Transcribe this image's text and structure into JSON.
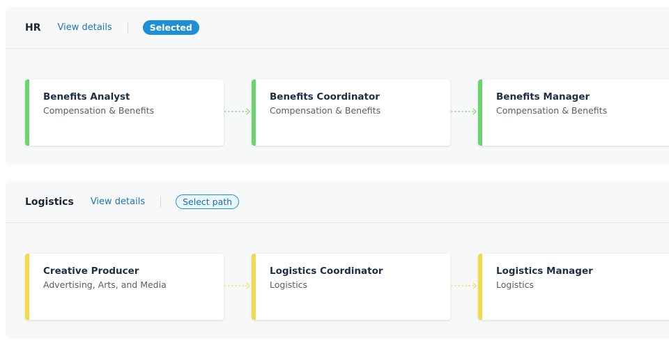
{
  "sections": [
    {
      "title": "HR",
      "link": "View details",
      "badge": "Selected",
      "badge_style": "filled",
      "accent": "#6cd46c",
      "cards": [
        {
          "title": "Benefits Analyst",
          "subtitle": "Compensation & Benefits"
        },
        {
          "title": "Benefits Coordinator",
          "subtitle": "Compensation & Benefits"
        },
        {
          "title": "Benefits Manager",
          "subtitle": "Compensation & Benefits"
        }
      ]
    },
    {
      "title": "Logistics",
      "link": "View details",
      "badge": "Select path",
      "badge_style": "outlined",
      "accent": "#f0dc48",
      "cards": [
        {
          "title": "Creative Producer",
          "subtitle": "Advertising, Arts, and Media"
        },
        {
          "title": "Logistics Coordinator",
          "subtitle": "Logistics"
        },
        {
          "title": "Logistics Manager",
          "subtitle": "Logistics"
        }
      ]
    }
  ]
}
